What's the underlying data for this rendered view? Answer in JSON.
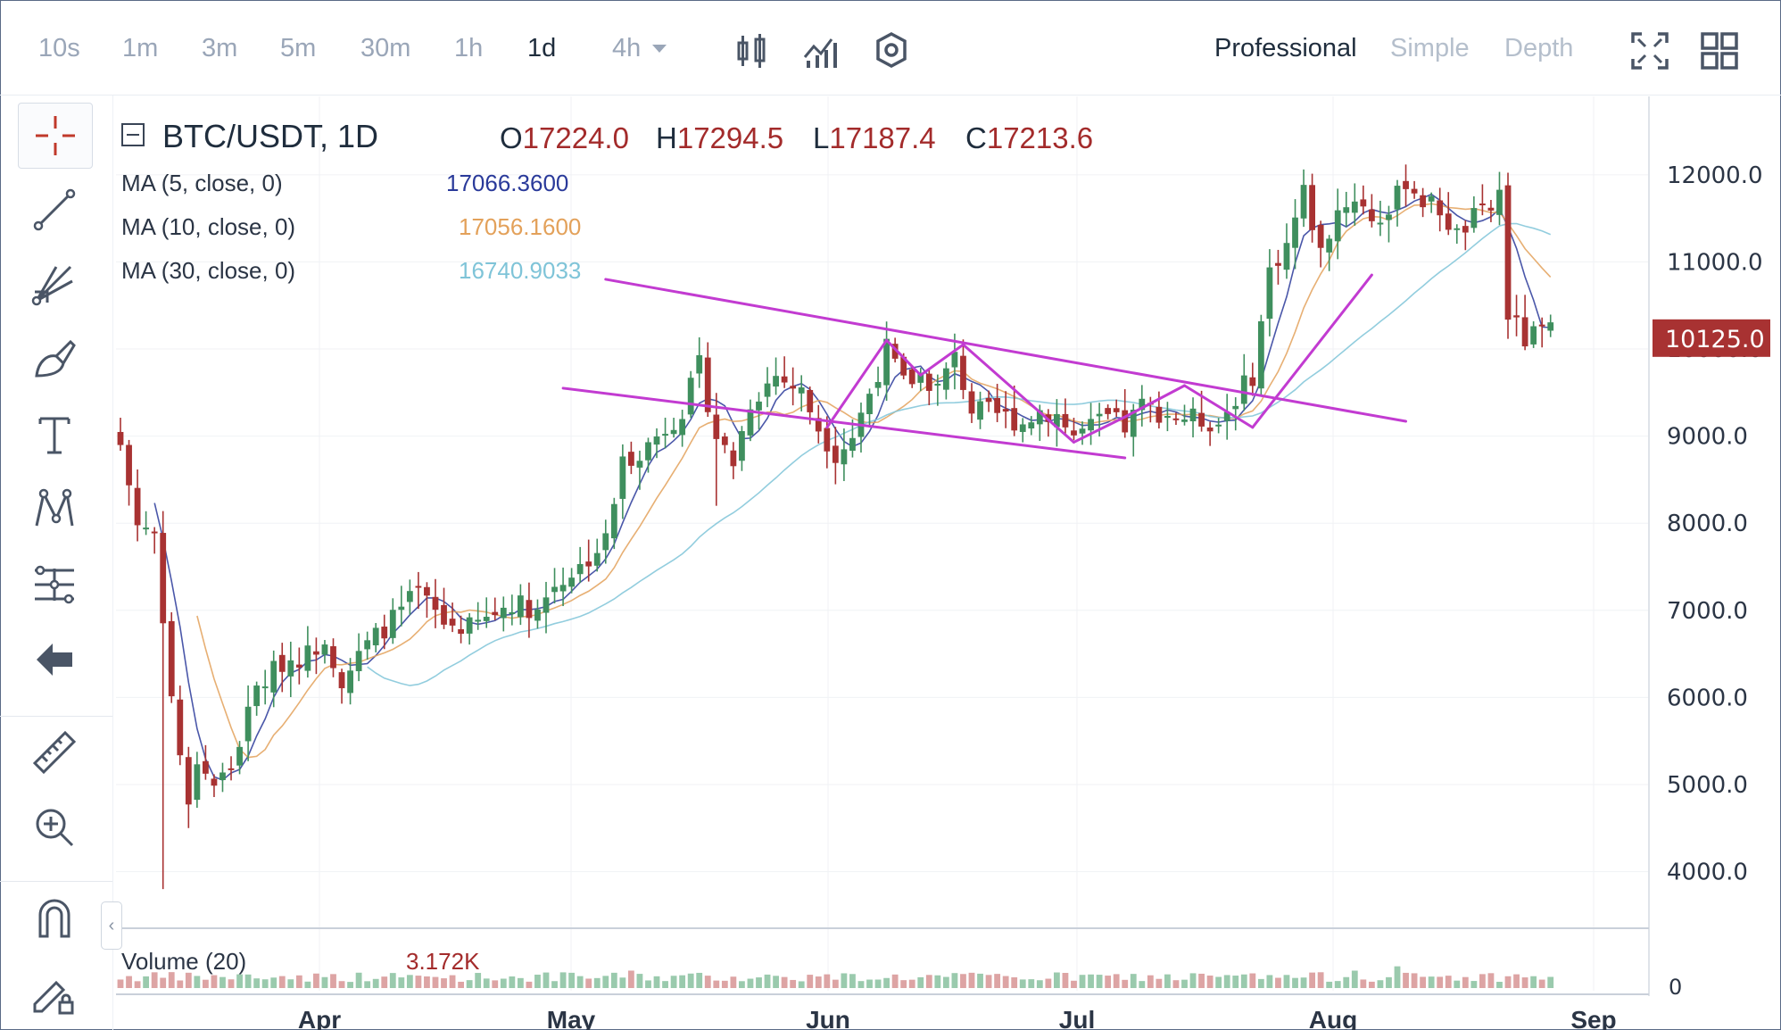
{
  "toolbar": {
    "timeframes": [
      "10s",
      "1m",
      "3m",
      "5m",
      "30m",
      "1h",
      "1d",
      "4h"
    ],
    "active_timeframe": "1d",
    "modes": [
      "Professional",
      "Simple",
      "Depth"
    ],
    "active_mode": "Professional"
  },
  "legend": {
    "symbol": "BTC/USDT, 1D",
    "ohlc": [
      {
        "key": "O",
        "value": "17224.0"
      },
      {
        "key": "H",
        "value": "17294.5"
      },
      {
        "key": "L",
        "value": "17187.4"
      },
      {
        "key": "C",
        "value": "17213.6"
      }
    ],
    "ma": [
      {
        "label": "MA (5, close, 0)",
        "value": "17066.3600",
        "color": "#2a3a9a"
      },
      {
        "label": "MA (10, close, 0)",
        "value": "17056.1600",
        "color": "#e3a15a"
      },
      {
        "label": "MA (30, close, 0)",
        "value": "16740.9033",
        "color": "#7fc4d8"
      }
    ],
    "volume_label": "Volume (20)",
    "volume_value": "3.172K"
  },
  "colors": {
    "up": "#3f8f5e",
    "down": "#a83232",
    "trendline": "#c23bd1",
    "price_badge": "#a83232",
    "grid": "#f0f2f5"
  },
  "chart_data": {
    "type": "candlestick",
    "symbol": "BTC/USDT",
    "interval": "1D",
    "x_labels": [
      "Apr",
      "May",
      "Jun",
      "Jul",
      "Aug",
      "Sep"
    ],
    "y_ticks": [
      "12000.0",
      "11000.0",
      "10000.0",
      "9000.0",
      "8000.0",
      "7000.0",
      "6000.0",
      "5000.0",
      "4000.0"
    ],
    "ylim": [
      3350,
      12900
    ],
    "last_price": "10125.0",
    "volume_tick": "0",
    "anchors_day_close": [
      [
        0,
        8900
      ],
      [
        2,
        8000
      ],
      [
        4,
        7900
      ],
      [
        6,
        6000
      ],
      [
        8,
        4700
      ],
      [
        9,
        5300
      ],
      [
        11,
        5000
      ],
      [
        13,
        5200
      ],
      [
        16,
        6100
      ],
      [
        19,
        6400
      ],
      [
        22,
        6500
      ],
      [
        24,
        6700
      ],
      [
        26,
        6200
      ],
      [
        29,
        6600
      ],
      [
        32,
        6900
      ],
      [
        35,
        7200
      ],
      [
        38,
        6850
      ],
      [
        41,
        6800
      ],
      [
        43,
        6900
      ],
      [
        46,
        7100
      ],
      [
        49,
        7000
      ],
      [
        51,
        7300
      ],
      [
        54,
        7500
      ],
      [
        57,
        7800
      ],
      [
        59,
        8700
      ],
      [
        62,
        8900
      ],
      [
        64,
        9100
      ],
      [
        66,
        9300
      ],
      [
        68,
        9800
      ],
      [
        70,
        9000
      ],
      [
        72,
        8700
      ],
      [
        74,
        9400
      ],
      [
        77,
        9700
      ],
      [
        80,
        9500
      ],
      [
        82,
        9100
      ],
      [
        84,
        8800
      ],
      [
        86,
        9000
      ],
      [
        88,
        9500
      ],
      [
        90,
        10000
      ],
      [
        92,
        9600
      ],
      [
        94,
        9700
      ],
      [
        96,
        9550
      ],
      [
        98,
        9900
      ],
      [
        100,
        9300
      ],
      [
        103,
        9250
      ],
      [
        106,
        9150
      ],
      [
        108,
        9300
      ],
      [
        110,
        9250
      ],
      [
        112,
        9000
      ],
      [
        114,
        9100
      ],
      [
        116,
        9200
      ],
      [
        118,
        9100
      ],
      [
        120,
        9350
      ],
      [
        123,
        9250
      ],
      [
        126,
        9200
      ],
      [
        129,
        9150
      ],
      [
        131,
        9450
      ],
      [
        133,
        9700
      ],
      [
        135,
        10900
      ],
      [
        137,
        11200
      ],
      [
        139,
        11800
      ],
      [
        141,
        11100
      ],
      [
        143,
        11600
      ],
      [
        145,
        11750
      ],
      [
        147,
        11500
      ],
      [
        149,
        11550
      ],
      [
        151,
        11950
      ],
      [
        153,
        11700
      ],
      [
        155,
        11600
      ],
      [
        157,
        11300
      ],
      [
        159,
        11500
      ],
      [
        161,
        11600
      ],
      [
        162,
        11800
      ],
      [
        163,
        10400
      ],
      [
        165,
        10100
      ],
      [
        167,
        10200
      ]
    ],
    "trendlines": [
      {
        "from": [
          52,
          9550
        ],
        "to": [
          118,
          8750
        ],
        "name": "lower-support"
      },
      {
        "from": [
          57,
          10800
        ],
        "to": [
          151,
          9170
        ],
        "name": "upper-resistance"
      },
      {
        "from": [
          83,
          9100
        ],
        "to": [
          90,
          10100
        ],
        "name": "zigzag-1"
      },
      {
        "from": [
          90,
          10100
        ],
        "to": [
          94,
          9700
        ],
        "name": "zigzag-2"
      },
      {
        "from": [
          94,
          9700
        ],
        "to": [
          99,
          10050
        ],
        "name": "zigzag-3"
      },
      {
        "from": [
          99,
          10050
        ],
        "to": [
          112,
          8930
        ],
        "name": "zigzag-4"
      },
      {
        "from": [
          112,
          8930
        ],
        "to": [
          118,
          9220
        ],
        "name": "zigzag-5"
      },
      {
        "from": [
          118,
          9220
        ],
        "to": [
          125,
          9580
        ],
        "name": "zigzag-6"
      },
      {
        "from": [
          125,
          9580
        ],
        "to": [
          133,
          9100
        ],
        "name": "zigzag-7"
      },
      {
        "from": [
          133,
          9100
        ],
        "to": [
          147,
          10850
        ],
        "name": "breakout"
      }
    ]
  }
}
